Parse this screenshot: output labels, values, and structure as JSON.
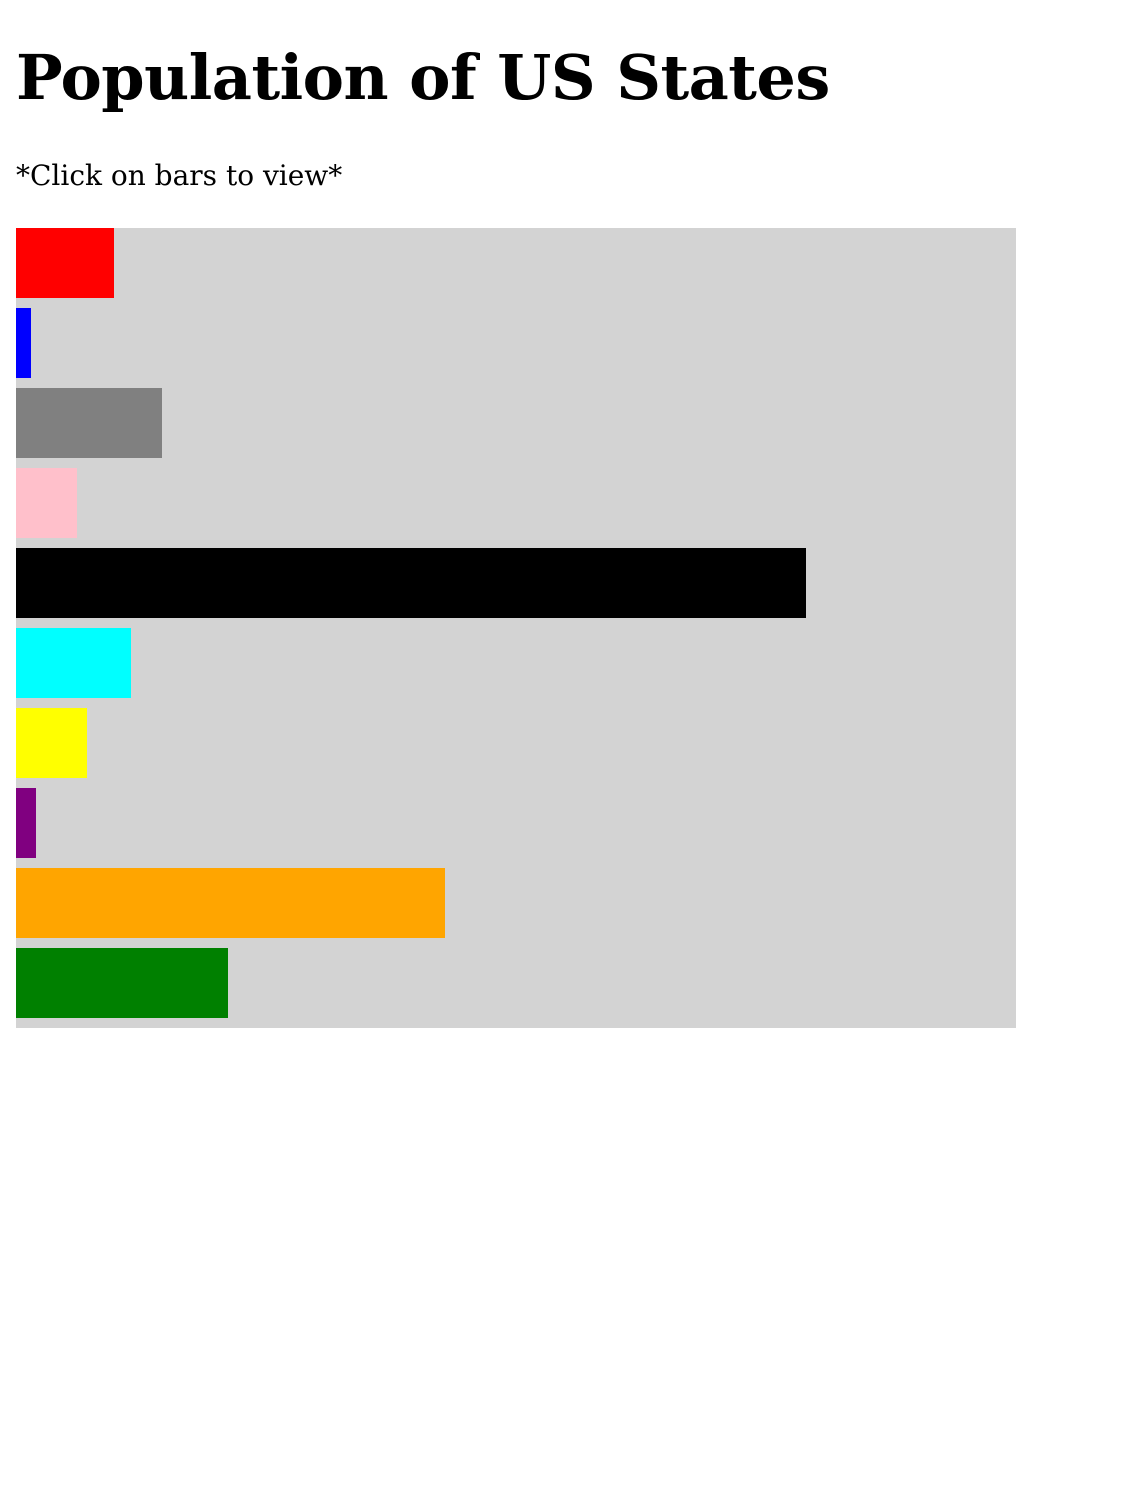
{
  "header": {
    "title": "Population of US States",
    "instruction": "*Click on bars to view*"
  },
  "colors": {
    "chart_background": "#d3d3d3",
    "page_background": "#ffffff"
  },
  "chart_data": {
    "type": "bar",
    "orientation": "horizontal",
    "title": "Population of US States",
    "xlim": [
      0,
      1000
    ],
    "grid": false,
    "legend": "none",
    "bars": [
      {
        "value": 98,
        "color": "#ff0000"
      },
      {
        "value": 15,
        "color": "#0000ff"
      },
      {
        "value": 146,
        "color": "#808080"
      },
      {
        "value": 61,
        "color": "#ffc0cb"
      },
      {
        "value": 790,
        "color": "#000000"
      },
      {
        "value": 115,
        "color": "#00ffff"
      },
      {
        "value": 71,
        "color": "#ffff00"
      },
      {
        "value": 20,
        "color": "#800080"
      },
      {
        "value": 429,
        "color": "#ffa500"
      },
      {
        "value": 212,
        "color": "#008000"
      }
    ]
  }
}
